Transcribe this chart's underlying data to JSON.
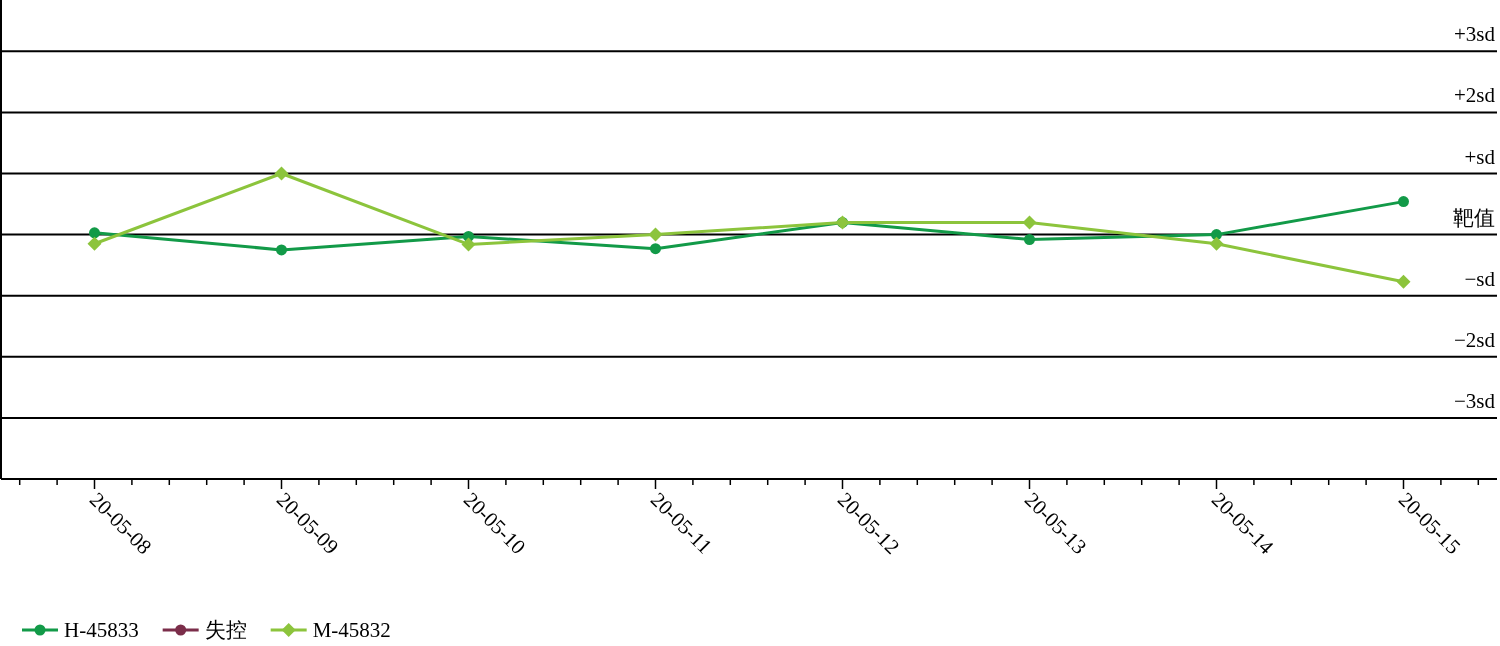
{
  "chart_data": {
    "type": "line",
    "categories": [
      "20-05-08",
      "20-05-09",
      "20-05-10",
      "20-05-11",
      "20-05-12",
      "20-05-13",
      "20-05-14",
      "20-05-15"
    ],
    "series": [
      {
        "name": "H-45833",
        "color": "#129a48",
        "marker": "circle",
        "values": [
          0.03,
          -0.25,
          -0.03,
          -0.23,
          0.2,
          -0.08,
          0,
          0.54
        ]
      },
      {
        "name": "失控",
        "color": "#7b2d4a",
        "marker": "circle",
        "values": [
          null,
          null,
          null,
          null,
          null,
          null,
          null,
          null
        ]
      },
      {
        "name": "M-45832",
        "color": "#8cc43c",
        "marker": "diamond",
        "values": [
          -0.15,
          1.0,
          -0.16,
          0,
          0.2,
          0.2,
          -0.15,
          -0.77
        ]
      }
    ],
    "ylim": [
      -4,
      3.84
    ],
    "ref_lines": [
      {
        "axis": "y",
        "value": 3,
        "label": "+3sd",
        "color": "#000000"
      },
      {
        "axis": "y",
        "value": 2,
        "label": "+2sd",
        "color": "#000000"
      },
      {
        "axis": "y",
        "value": 1,
        "label": "+sd",
        "color": "#000000"
      },
      {
        "axis": "y",
        "value": 0,
        "label": "靶值",
        "color": "#000000"
      },
      {
        "axis": "y",
        "value": -1,
        "label": "−sd",
        "color": "#000000"
      },
      {
        "axis": "y",
        "value": -2,
        "label": "−2sd",
        "color": "#000000"
      },
      {
        "axis": "y",
        "value": -3,
        "label": "−3sd",
        "color": "#000000"
      }
    ],
    "legend": "bottom left"
  }
}
